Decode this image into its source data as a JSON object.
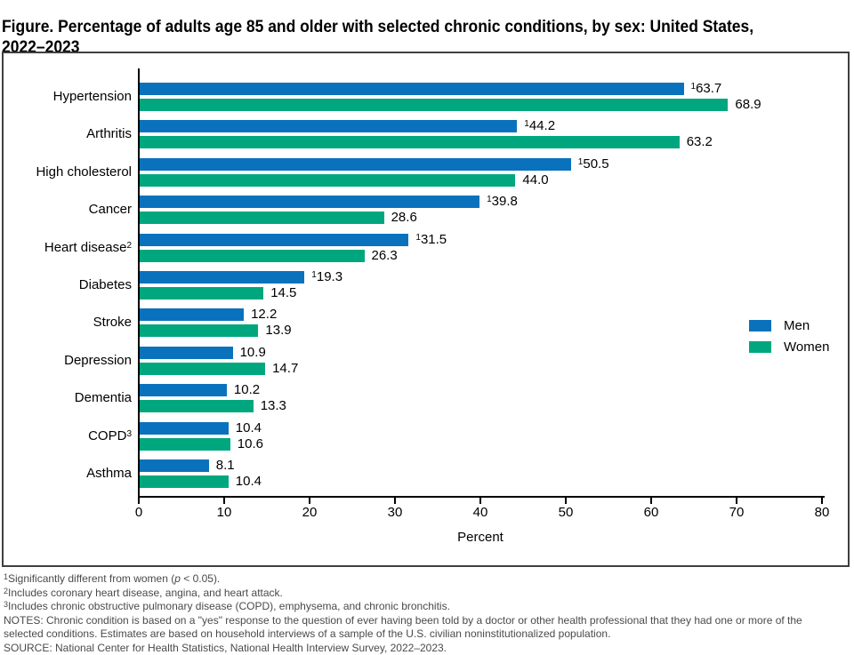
{
  "title": {
    "line1": "Figure. Percentage of adults age 85 and older with selected chronic conditions, by sex: United States,",
    "line2": "2022–2023"
  },
  "chart_data": {
    "type": "bar",
    "orientation": "horizontal",
    "title": "Percentage of adults age 85 and older with selected chronic conditions, by sex: United States, 2022–2023",
    "xlabel": "Percent",
    "xlim": [
      0,
      80
    ],
    "xticks": [
      0,
      10,
      20,
      30,
      40,
      50,
      60,
      70,
      80
    ],
    "grid": false,
    "legend_position": "middle-right",
    "sig_symbol": "1",
    "categories": [
      "Hypertension",
      "Arthritis",
      "High cholesterol",
      "Cancer",
      "Heart disease",
      "Diabetes",
      "Stroke",
      "Depression",
      "Dementia",
      "COPD",
      "Asthma"
    ],
    "category_sups": [
      "",
      "",
      "",
      "",
      "2",
      "",
      "",
      "",
      "",
      "3",
      ""
    ],
    "series": [
      {
        "name": "Men",
        "color": "#0a72bc",
        "values": [
          63.7,
          44.2,
          50.5,
          39.8,
          31.5,
          19.3,
          12.2,
          10.9,
          10.2,
          10.4,
          8.1
        ],
        "sig_flags": [
          true,
          true,
          true,
          true,
          true,
          true,
          false,
          false,
          false,
          false,
          false
        ]
      },
      {
        "name": "Women",
        "color": "#00a77e",
        "values": [
          68.9,
          63.2,
          44.0,
          28.6,
          26.3,
          14.5,
          13.9,
          14.7,
          13.3,
          10.6,
          10.4
        ],
        "sig_flags": [
          false,
          false,
          false,
          false,
          false,
          false,
          false,
          false,
          false,
          false,
          false
        ]
      }
    ]
  },
  "footnotes": {
    "f1_sup": "1",
    "f1_pre": "Significantly different from women (",
    "f1_italic": "p",
    "f1_post": " < 0.05).",
    "f2_sup": "2",
    "f2_text": "Includes coronary heart disease, angina, and heart attack.",
    "f3_sup": "3",
    "f3_text": "Includes chronic obstructive pulmonary disease (COPD), emphysema, and chronic bronchitis.",
    "notes_line1": "NOTES: Chronic condition is based on a \"yes\" response to the question of ever having been told by a doctor or other health professional that they had one or more of the",
    "notes_line2": "selected conditions. Estimates are based on household interviews of a sample of the U.S. civilian noninstitutionalized population.",
    "source": "SOURCE: National Center for Health Statistics, National Health Interview Survey, 2022–2023."
  }
}
